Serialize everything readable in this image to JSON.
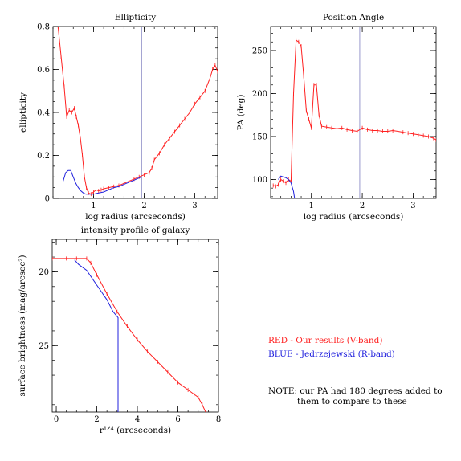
{
  "colors": {
    "red": "#ff2020",
    "blue": "#2020dd",
    "vline": "#9999cc",
    "axis": "#000000"
  },
  "chart_data": [
    {
      "type": "line",
      "title": "Ellipticity",
      "xlabel": "log radius (arcseconds)",
      "ylabel": "ellipticity",
      "xlim": [
        0.2,
        3.45
      ],
      "ylim": [
        0,
        0.8
      ],
      "xticks": [
        1,
        2,
        3
      ],
      "yticks": [
        0,
        0.2,
        0.4,
        0.6,
        0.8
      ],
      "ytick_labels": [
        "0",
        "0.2",
        "0.4",
        "0.6",
        "0.8"
      ],
      "vline_x": 1.95,
      "series": [
        {
          "color": "red",
          "x": [
            0.3,
            0.36,
            0.42,
            0.47,
            0.52,
            0.57,
            0.62,
            0.66,
            0.7,
            0.74,
            0.78,
            0.82,
            0.86,
            0.9,
            0.95,
            1.0,
            1.05,
            1.1,
            1.15,
            1.2,
            1.3,
            1.4,
            1.5,
            1.6,
            1.7,
            1.8,
            1.9,
            2.0,
            2.1,
            2.15,
            2.2,
            2.3,
            2.4,
            2.5,
            2.6,
            2.7,
            2.8,
            2.9,
            3.0,
            3.1,
            3.2,
            3.3,
            3.35,
            3.4,
            3.45
          ],
          "y": [
            0.8,
            0.66,
            0.52,
            0.38,
            0.41,
            0.4,
            0.42,
            0.38,
            0.34,
            0.28,
            0.2,
            0.1,
            0.05,
            0.025,
            0.02,
            0.03,
            0.04,
            0.035,
            0.04,
            0.045,
            0.05,
            0.055,
            0.06,
            0.07,
            0.08,
            0.09,
            0.1,
            0.11,
            0.12,
            0.14,
            0.18,
            0.21,
            0.25,
            0.28,
            0.31,
            0.34,
            0.37,
            0.4,
            0.44,
            0.47,
            0.5,
            0.56,
            0.6,
            0.62,
            0.59
          ]
        },
        {
          "color": "blue",
          "x": [
            0.4,
            0.45,
            0.5,
            0.55,
            0.6,
            0.65,
            0.7,
            0.75,
            0.8,
            0.85,
            0.9,
            0.95,
            1.0,
            1.1,
            1.2,
            1.3,
            1.4,
            1.5,
            1.6,
            1.7,
            1.8,
            1.9,
            1.95
          ],
          "y": [
            0.08,
            0.12,
            0.13,
            0.13,
            0.1,
            0.07,
            0.05,
            0.035,
            0.025,
            0.02,
            0.02,
            0.02,
            0.02,
            0.025,
            0.03,
            0.04,
            0.05,
            0.055,
            0.065,
            0.075,
            0.085,
            0.095,
            0.1
          ]
        }
      ]
    },
    {
      "type": "line",
      "title": "Position Angle",
      "xlabel": "log radius (arcseconds)",
      "ylabel": "PA (deg)",
      "xlim": [
        0.2,
        3.45
      ],
      "ylim": [
        78,
        278
      ],
      "xticks": [
        1,
        2,
        3
      ],
      "yticks": [
        100,
        150,
        200,
        250
      ],
      "ytick_labels": [
        "100",
        "150",
        "200",
        "250"
      ],
      "vline_x": 1.95,
      "series": [
        {
          "color": "red",
          "x": [
            0.25,
            0.3,
            0.35,
            0.4,
            0.45,
            0.5,
            0.55,
            0.6,
            0.65,
            0.7,
            0.75,
            0.8,
            0.85,
            0.9,
            0.95,
            1.0,
            1.05,
            1.1,
            1.15,
            1.2,
            1.3,
            1.4,
            1.5,
            1.6,
            1.7,
            1.8,
            1.9,
            2.0,
            2.1,
            2.2,
            2.3,
            2.4,
            2.5,
            2.6,
            2.7,
            2.8,
            2.9,
            3.0,
            3.1,
            3.2,
            3.3,
            3.4,
            3.45
          ],
          "y": [
            93,
            92,
            94,
            100,
            98,
            96,
            100,
            98,
            200,
            262,
            260,
            255,
            220,
            180,
            170,
            160,
            210,
            210,
            175,
            162,
            161,
            160,
            159,
            160,
            158,
            157,
            156,
            160,
            158,
            157,
            157,
            156,
            156,
            157,
            156,
            155,
            154,
            153,
            152,
            151,
            150,
            148,
            146
          ]
        },
        {
          "color": "blue",
          "x": [
            0.35,
            0.4,
            0.45,
            0.5,
            0.55,
            0.6,
            0.62,
            0.65,
            0.67
          ],
          "y": [
            100,
            104,
            103,
            102,
            100,
            96,
            92,
            86,
            78
          ]
        }
      ]
    },
    {
      "type": "line",
      "title": "intensity profile of galaxy",
      "xlabel": "r¹ᐟ⁴ (arcseconds)",
      "ylabel": "surface brightness (mag/arcsec²)",
      "xlim": [
        -0.2,
        8
      ],
      "ylim": [
        17.8,
        29.5
      ],
      "y_inverted": true,
      "xticks": [
        0,
        2,
        4,
        6,
        8
      ],
      "yticks": [
        20,
        25
      ],
      "ytick_labels": [
        "20",
        "25"
      ],
      "series": [
        {
          "color": "red",
          "x": [
            -0.2,
            0.5,
            1.0,
            1.5,
            1.7,
            2.0,
            2.5,
            3.0,
            3.5,
            4.0,
            4.5,
            5.0,
            5.5,
            6.0,
            6.5,
            6.8,
            7.0,
            7.2,
            7.4,
            7.5
          ],
          "y": [
            19.1,
            19.1,
            19.1,
            19.1,
            19.4,
            20.2,
            21.5,
            22.7,
            23.7,
            24.6,
            25.4,
            26.1,
            26.8,
            27.5,
            28.0,
            28.3,
            28.5,
            29.0,
            29.6,
            29.8
          ]
        },
        {
          "color": "blue",
          "x": [
            0.9,
            1.1,
            1.5,
            2.0,
            2.5,
            2.8,
            3.05,
            3.05
          ],
          "y": [
            19.2,
            19.5,
            19.9,
            20.9,
            21.9,
            22.7,
            23.1,
            29.6
          ]
        }
      ]
    }
  ],
  "notes": {
    "red_label": "RED - Our results (V-band)",
    "blue_label": "BLUE - Jedrzejewski (R-band)",
    "note_line1": "NOTE: our PA had 180 degrees added to",
    "note_line2": "them to compare to these"
  }
}
